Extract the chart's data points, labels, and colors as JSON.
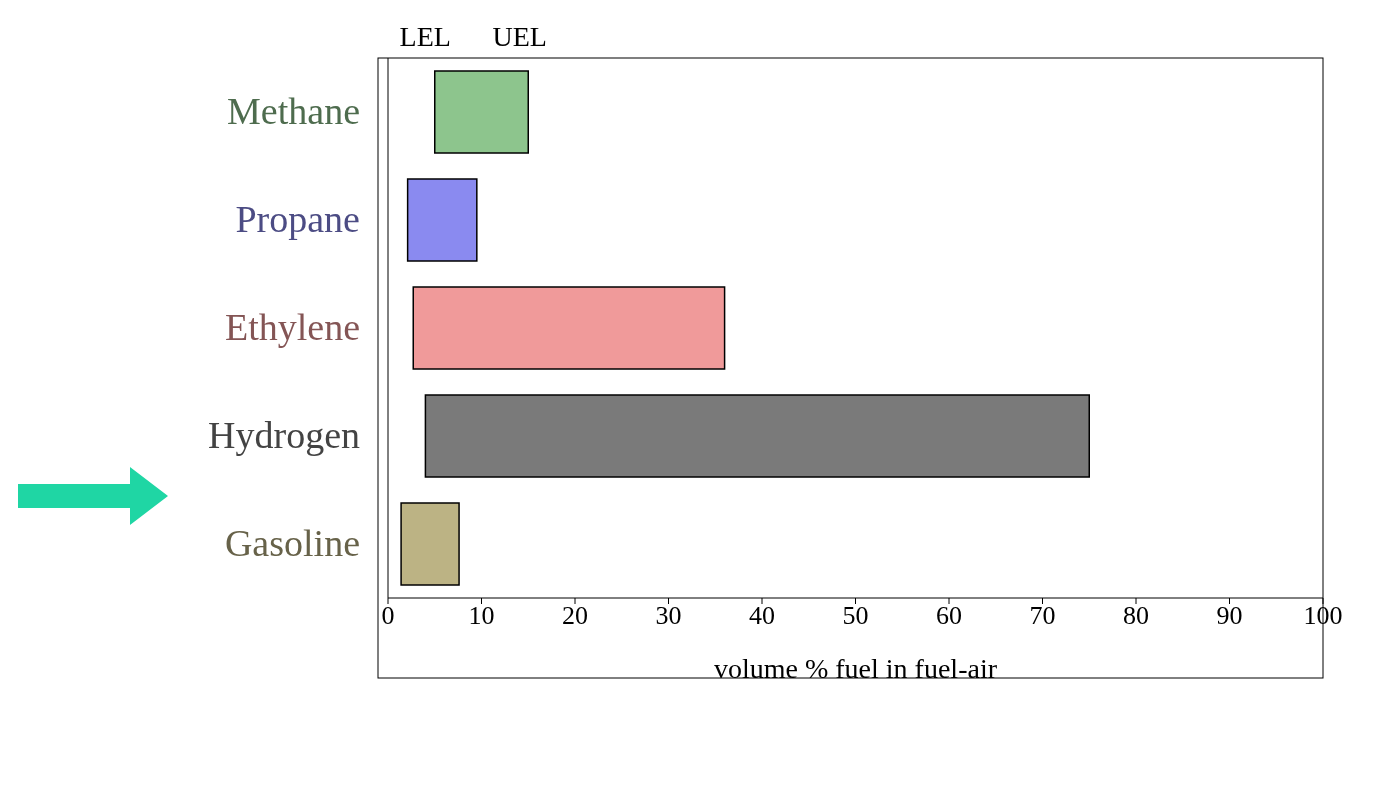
{
  "chart_data": {
    "type": "bar",
    "orientation": "horizontal",
    "categories": [
      "Methane",
      "Propane",
      "Ethylene",
      "Hydrogen",
      "Gasoline"
    ],
    "base": [
      5,
      2.1,
      2.7,
      4,
      1.4
    ],
    "values": [
      10,
      7.4,
      33.3,
      71,
      6.2
    ],
    "colors": [
      "#8dc58d",
      "#8a8af0",
      "#f09a9a",
      "#7a7a7a",
      "#bcb384"
    ],
    "xlim": [
      0,
      100
    ],
    "xticks": [
      0,
      10,
      20,
      30,
      40,
      50,
      60,
      70,
      80,
      90,
      100
    ],
    "xlabel": "volume % fuel in fuel-air",
    "annotations": [
      "LEL",
      "UEL"
    ]
  }
}
